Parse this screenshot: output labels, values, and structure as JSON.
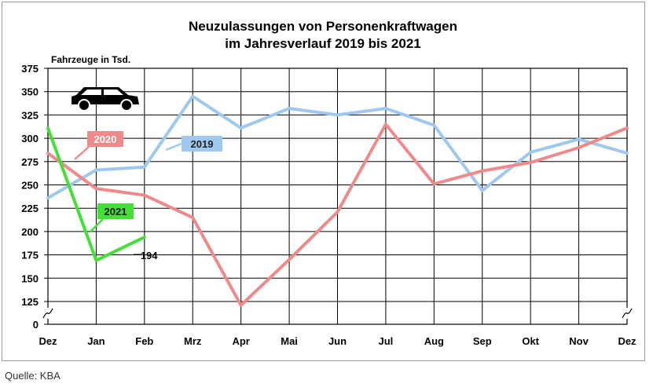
{
  "source": "Quelle: KBA",
  "chart_data": {
    "type": "line",
    "title": [
      "Neuzulassungen von Personenkraftwagen",
      "im Jahresverlauf 2019 bis 2021"
    ],
    "ylabel": "Fahrzeuge in Tsd.",
    "xlabel": "",
    "categories": [
      "Dez",
      "Jan",
      "Feb",
      "Mrz",
      "Apr",
      "Mai",
      "Jun",
      "Jul",
      "Aug",
      "Sep",
      "Okt",
      "Nov",
      "Dez"
    ],
    "y_ticks": [
      0,
      125,
      150,
      175,
      200,
      225,
      250,
      275,
      300,
      325,
      350,
      375
    ],
    "ylim": [
      100,
      375
    ],
    "axis_break": true,
    "grid": true,
    "icon": "car-icon",
    "series": [
      {
        "name": "2019",
        "color": "#9ec8f0",
        "values": [
          236,
          266,
          269,
          345,
          311,
          332,
          325,
          332,
          314,
          244,
          285,
          299,
          284
        ]
      },
      {
        "name": "2020",
        "color": "#f08a8a",
        "values": [
          284,
          246,
          239,
          215,
          121,
          170,
          221,
          315,
          251,
          265,
          274,
          290,
          311
        ]
      },
      {
        "name": "2021",
        "color": "#44e038",
        "values": [
          311,
          169,
          194,
          null,
          null,
          null,
          null,
          null,
          null,
          null,
          null,
          null,
          null
        ]
      }
    ],
    "annotations": [
      {
        "series": "2021",
        "index": 2,
        "text": "194"
      }
    ]
  }
}
